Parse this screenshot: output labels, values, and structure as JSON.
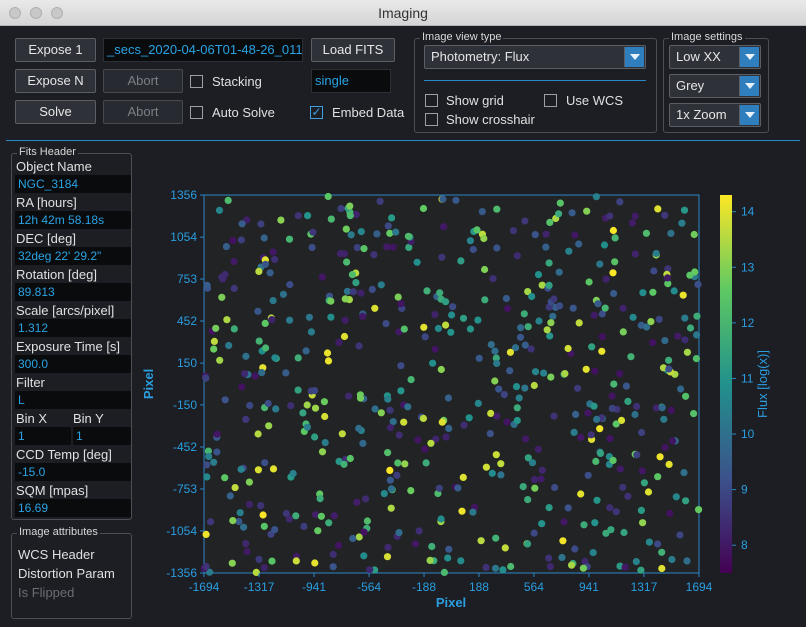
{
  "window": {
    "title": "Imaging"
  },
  "toolbar": {
    "expose1_label": "Expose 1",
    "exposeN_label": "Expose N",
    "solve_label": "Solve",
    "abort_label": "Abort",
    "abort2_label": "Abort",
    "load_fits_label": "Load FITS",
    "filename_value": "_secs_2020-04-06T01-48-26_011",
    "stacking_label": "Stacking",
    "stacking_checked": false,
    "stack_mode_value": "single",
    "auto_solve_label": "Auto Solve",
    "auto_solve_checked": false,
    "embed_data_label": "Embed Data",
    "embed_data_checked": true
  },
  "image_view": {
    "title": "Image view type",
    "type_value": "Photometry: Flux",
    "show_grid_label": "Show grid",
    "use_wcs_label": "Use WCS",
    "show_crosshair_label": "Show crosshair"
  },
  "image_settings": {
    "title": "Image settings",
    "stretch_value": "Low XX",
    "color_value": "Grey",
    "zoom_value": "1x Zoom"
  },
  "fits_header": {
    "title": "Fits Header",
    "object_name_label": "Object Name",
    "object_name_value": "NGC_3184",
    "ra_label": "RA [hours]",
    "ra_value": "12h 42m 58.18s",
    "dec_label": "DEC [deg]",
    "dec_value": "32deg 22' 29.2\"",
    "rotation_label": "Rotation [deg]",
    "rotation_value": "89.813",
    "scale_label": "Scale [arcs/pixel]",
    "scale_value": "1.312",
    "exposure_label": "Exposure Time [s]",
    "exposure_value": "300.0",
    "filter_label": "Filter",
    "filter_value": "L",
    "binx_label": "Bin X",
    "binx_value": "1",
    "biny_label": "Bin Y",
    "biny_value": "1",
    "ccd_label": "CCD Temp [deg]",
    "ccd_value": "-15.0",
    "sqm_label": "SQM [mpas]",
    "sqm_value": "16.69"
  },
  "image_attributes": {
    "title": "Image attributes",
    "wcs_header": "WCS Header",
    "distortion": "Distortion Param",
    "is_flipped": "Is Flipped"
  },
  "chart_data": {
    "type": "scatter",
    "xlabel": "Pixel",
    "ylabel": "Pixel",
    "colorbar_label": "Flux [log(x)]",
    "xlim": [
      -1694,
      1694
    ],
    "ylim": [
      -1356,
      1356
    ],
    "x_ticks": [
      "-1694",
      "-1317",
      "-941",
      "-564",
      "-188",
      "188",
      "564",
      "941",
      "1317",
      "1694"
    ],
    "y_ticks": [
      "1356",
      "1054",
      "753",
      "452",
      "150",
      "-150",
      "-452",
      "-753",
      "-1054",
      "-1356"
    ],
    "colorbar_range": [
      7.5,
      14.3
    ],
    "colorbar_ticks": [
      "14",
      "13",
      "12",
      "11",
      "10",
      "9",
      "8"
    ],
    "colormap": "viridis",
    "point_count": 600,
    "background_color": "#222325"
  }
}
